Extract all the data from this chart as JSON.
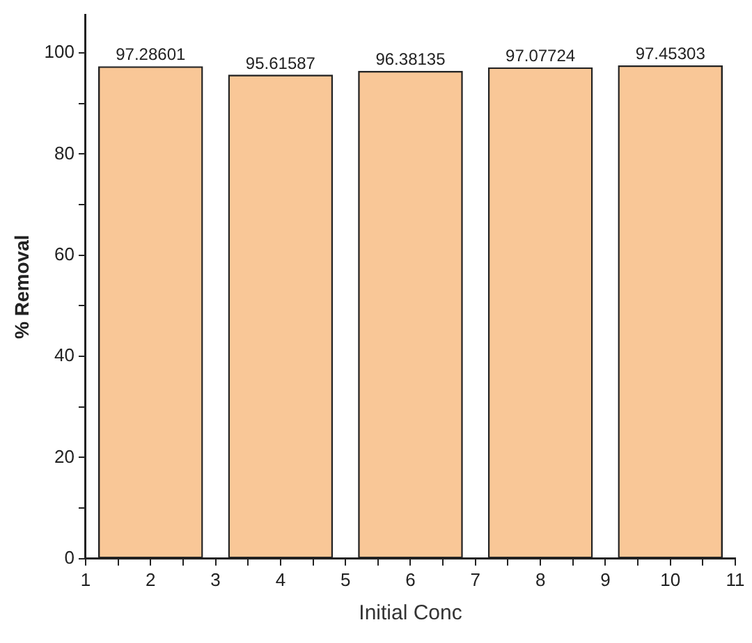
{
  "chart_data": {
    "type": "bar",
    "xlabel": "Initial Conc",
    "ylabel": "% Removal",
    "x": [
      2,
      4,
      6,
      8,
      10
    ],
    "values": [
      97.28601,
      95.61587,
      96.38135,
      97.07724,
      97.45303
    ],
    "color": "#f9c797",
    "data_labels": true,
    "xlim": [
      1,
      11
    ],
    "xticks": [
      1,
      {
        "value": 1.5,
        "label": null
      },
      2,
      {
        "value": 2.5,
        "label": null
      },
      3,
      {
        "value": 3.5,
        "label": null
      },
      4,
      {
        "value": 4.5,
        "label": null
      },
      5,
      {
        "value": 5.5,
        "label": null
      },
      6,
      {
        "value": 6.5,
        "label": null
      },
      7,
      {
        "value": 7.5,
        "label": null
      },
      8,
      {
        "value": 8.5,
        "label": null
      },
      9,
      {
        "value": 9.5,
        "label": null
      },
      10,
      {
        "value": 10.5,
        "label": null
      },
      11
    ],
    "ylim": [
      0,
      107.5
    ],
    "yticks": [
      0,
      {
        "value": 10,
        "label": null
      },
      20,
      {
        "value": 30,
        "label": null
      },
      40,
      {
        "value": 50,
        "label": null
      },
      60,
      {
        "value": 70,
        "label": null
      },
      80,
      {
        "value": 90,
        "label": null
      },
      100
    ],
    "grid": false,
    "legend": false
  }
}
